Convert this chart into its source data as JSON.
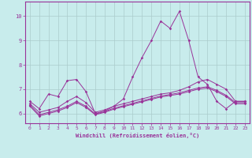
{
  "xlabel": "Windchill (Refroidissement éolien,°C)",
  "bg_color": "#c8ecec",
  "line_color": "#993399",
  "grid_color": "#aacccc",
  "axis_color": "#993399",
  "xlim": [
    -0.5,
    23.5
  ],
  "ylim": [
    5.6,
    10.6
  ],
  "yticks": [
    6,
    7,
    8,
    9,
    10
  ],
  "xticks": [
    0,
    1,
    2,
    3,
    4,
    5,
    6,
    7,
    8,
    9,
    10,
    11,
    12,
    13,
    14,
    15,
    16,
    17,
    18,
    19,
    20,
    21,
    22,
    23
  ],
  "series1_x": [
    0,
    1,
    2,
    3,
    4,
    5,
    6,
    7,
    8,
    9,
    10,
    11,
    12,
    13,
    14,
    15,
    16,
    17,
    18,
    19,
    20,
    21,
    22,
    23
  ],
  "series1_y": [
    6.5,
    6.2,
    6.8,
    6.7,
    7.35,
    7.4,
    6.9,
    6.0,
    6.1,
    6.3,
    6.6,
    7.5,
    8.3,
    9.0,
    9.8,
    9.5,
    10.2,
    9.0,
    7.5,
    7.2,
    6.5,
    6.2,
    6.5,
    6.5
  ],
  "series2_x": [
    0,
    1,
    2,
    3,
    4,
    5,
    6,
    7,
    8,
    9,
    10,
    11,
    12,
    13,
    14,
    15,
    16,
    17,
    18,
    19,
    20,
    21,
    22,
    23
  ],
  "series2_y": [
    6.4,
    6.05,
    6.15,
    6.25,
    6.5,
    6.7,
    6.45,
    6.05,
    6.15,
    6.3,
    6.4,
    6.5,
    6.6,
    6.7,
    6.8,
    6.85,
    6.95,
    7.1,
    7.3,
    7.4,
    7.2,
    7.0,
    6.5,
    6.5
  ],
  "series3_x": [
    0,
    1,
    2,
    3,
    4,
    5,
    6,
    7,
    8,
    9,
    10,
    11,
    12,
    13,
    14,
    15,
    16,
    17,
    18,
    19,
    20,
    21,
    22,
    23
  ],
  "series3_y": [
    6.35,
    5.95,
    6.05,
    6.15,
    6.3,
    6.5,
    6.3,
    5.98,
    6.08,
    6.22,
    6.32,
    6.42,
    6.52,
    6.62,
    6.72,
    6.78,
    6.85,
    6.95,
    7.05,
    7.1,
    6.95,
    6.75,
    6.45,
    6.45
  ],
  "series4_x": [
    0,
    1,
    2,
    3,
    4,
    5,
    6,
    7,
    8,
    9,
    10,
    11,
    12,
    13,
    14,
    15,
    16,
    17,
    18,
    19,
    20,
    21,
    22,
    23
  ],
  "series4_y": [
    6.3,
    5.9,
    6.0,
    6.1,
    6.25,
    6.45,
    6.25,
    5.95,
    6.05,
    6.18,
    6.28,
    6.38,
    6.48,
    6.58,
    6.68,
    6.74,
    6.8,
    6.9,
    7.0,
    7.05,
    6.9,
    6.7,
    6.4,
    6.4
  ]
}
